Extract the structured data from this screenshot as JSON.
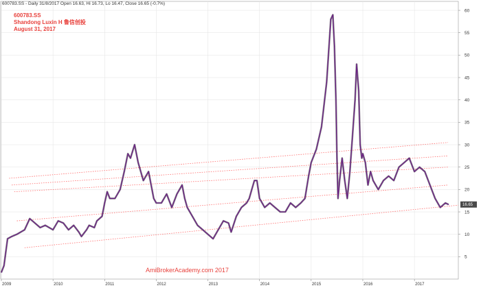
{
  "header": {
    "info": "600783.SS - Daily 31/8/2017 Open 16.63, Hi 16.73, Lo 16.47, Close 16.65 (-0.7%)",
    "symbol": "600783.SS",
    "name": "Shandong Luxin H 鲁信创投",
    "date": "August 31, 2017"
  },
  "watermark": "AmiBrokerAcademy.com  2017",
  "colors": {
    "price": "#6b1f86",
    "channel": "#ff6a6a",
    "text": "#e8413c"
  },
  "chart_data": {
    "type": "line",
    "x_ticks": [
      "2009",
      "2010",
      "2011",
      "2012",
      "2013",
      "2014",
      "2015",
      "2016",
      "2017"
    ],
    "y_ticks": [
      5,
      10,
      15,
      20,
      25,
      30,
      35,
      40,
      45,
      50,
      55,
      60
    ],
    "ylim": [
      0,
      62
    ],
    "xlim": [
      2009.0,
      2017.85
    ],
    "last_value_label": "16.65",
    "series": [
      {
        "x": [
          2009.0,
          2009.05,
          2009.12,
          2009.2,
          2009.3,
          2009.45,
          2009.55,
          2009.65,
          2009.75,
          2009.85,
          2010.0,
          2010.1,
          2010.2,
          2010.3,
          2010.4,
          2010.5,
          2010.55,
          2010.65,
          2010.7,
          2010.8,
          2010.85,
          2010.95,
          2011.0,
          2011.05,
          2011.1,
          2011.2,
          2011.3,
          2011.38,
          2011.45,
          2011.5,
          2011.58,
          2011.65,
          2011.75,
          2011.85,
          2011.95,
          2012.0,
          2012.1,
          2012.2,
          2012.3,
          2012.4,
          2012.5,
          2012.55,
          2012.6,
          2012.7,
          2012.8,
          2012.9,
          2013.0,
          2013.1,
          2013.2,
          2013.3,
          2013.4,
          2013.45,
          2013.55,
          2013.65,
          2013.75,
          2013.8,
          2013.85,
          2013.9,
          2013.95,
          2014.0,
          2014.1,
          2014.2,
          2014.3,
          2014.4,
          2014.5,
          2014.6,
          2014.7,
          2014.8,
          2014.88,
          2014.95,
          2015.0,
          2015.1,
          2015.2,
          2015.3,
          2015.38,
          2015.42,
          2015.45,
          2015.48,
          2015.5,
          2015.52,
          2015.55,
          2015.6,
          2015.65,
          2015.7,
          2015.75,
          2015.8,
          2015.85,
          2015.88,
          2015.92,
          2015.95,
          2015.98,
          2016.0,
          2016.05,
          2016.1,
          2016.15,
          2016.2,
          2016.3,
          2016.4,
          2016.5,
          2016.6,
          2016.7,
          2016.8,
          2016.9,
          2017.0,
          2017.1,
          2017.2,
          2017.3,
          2017.4,
          2017.5,
          2017.6,
          2017.66
        ],
        "y": [
          1.5,
          3.0,
          9.0,
          9.5,
          10.0,
          11.0,
          13.5,
          12.5,
          11.5,
          12.0,
          11.0,
          13.0,
          12.5,
          11.0,
          12.0,
          10.5,
          9.5,
          11.0,
          12.0,
          11.5,
          13.0,
          14.0,
          17.0,
          19.5,
          18.0,
          18.0,
          20.0,
          24.0,
          28.0,
          27.0,
          30.0,
          26.0,
          22.0,
          24.0,
          18.0,
          17.0,
          17.0,
          19.0,
          16.0,
          19.0,
          21.0,
          18.0,
          16.0,
          14.0,
          12.0,
          11.0,
          10.0,
          9.0,
          11.0,
          13.0,
          12.5,
          10.5,
          14.0,
          16.0,
          17.0,
          18.0,
          20.0,
          22.0,
          22.0,
          18.0,
          16.0,
          17.0,
          16.0,
          15.0,
          15.0,
          17.0,
          16.0,
          17.0,
          18.0,
          23.0,
          26.0,
          29.0,
          34.0,
          44.0,
          58.0,
          59.0,
          52.0,
          40.0,
          27.0,
          18.0,
          22.0,
          27.0,
          22.0,
          18.0,
          24.0,
          32.0,
          40.0,
          48.0,
          42.0,
          30.0,
          27.0,
          28.0,
          26.0,
          21.0,
          24.0,
          22.0,
          20.0,
          22.0,
          23.0,
          22.0,
          25.0,
          26.0,
          27.0,
          24.0,
          25.0,
          24.0,
          21.0,
          18.0,
          16.0,
          17.0,
          16.65
        ]
      }
    ],
    "channels": [
      {
        "x": [
          2009.15,
          2017.65
        ],
        "y": [
          22.5,
          30.5
        ]
      },
      {
        "x": [
          2009.2,
          2017.65
        ],
        "y": [
          21.0,
          27.5
        ]
      },
      {
        "x": [
          2009.25,
          2017.65
        ],
        "y": [
          19.5,
          25.0
        ]
      },
      {
        "x": [
          2009.3,
          2017.65
        ],
        "y": [
          13.0,
          21.0
        ]
      },
      {
        "x": [
          2009.45,
          2017.85
        ],
        "y": [
          7.0,
          16.5
        ]
      }
    ]
  }
}
